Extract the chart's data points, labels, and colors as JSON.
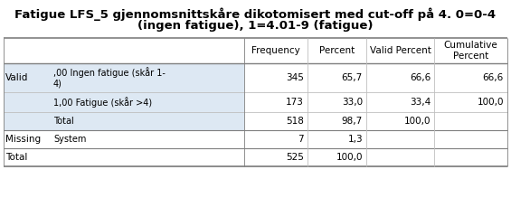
{
  "title_line1": "Fatigue LFS_5 gjennomsnittskåre dikotomisert med cut-off på 4. 0=0-4",
  "title_line2": "(ingen fatigue), 1=4.01-9 (fatigue)",
  "title_fontsize": 9.5,
  "font_size": 7.5,
  "col_headers": [
    "Frequency",
    "Percent",
    "Valid Percent",
    "Cumulative\nPercent"
  ],
  "row_data": [
    [
      "Valid",
      ",00 Ingen fatigue (skår 1-\n4)",
      "345",
      "65,7",
      "66,6",
      "66,6"
    ],
    [
      "",
      "1,00 Fatigue (skår >4)",
      "173",
      "33,0",
      "33,4",
      "100,0"
    ],
    [
      "",
      "Total",
      "518",
      "98,7",
      "100,0",
      ""
    ],
    [
      "Missing",
      "System",
      "7",
      "1,3",
      "",
      ""
    ],
    [
      "Total",
      "",
      "525",
      "100,0",
      "",
      ""
    ]
  ],
  "shaded_bg": "#dde8f3",
  "white_bg": "#ffffff",
  "border_dark": "#7f7f7f",
  "border_light": "#bfbfbf"
}
